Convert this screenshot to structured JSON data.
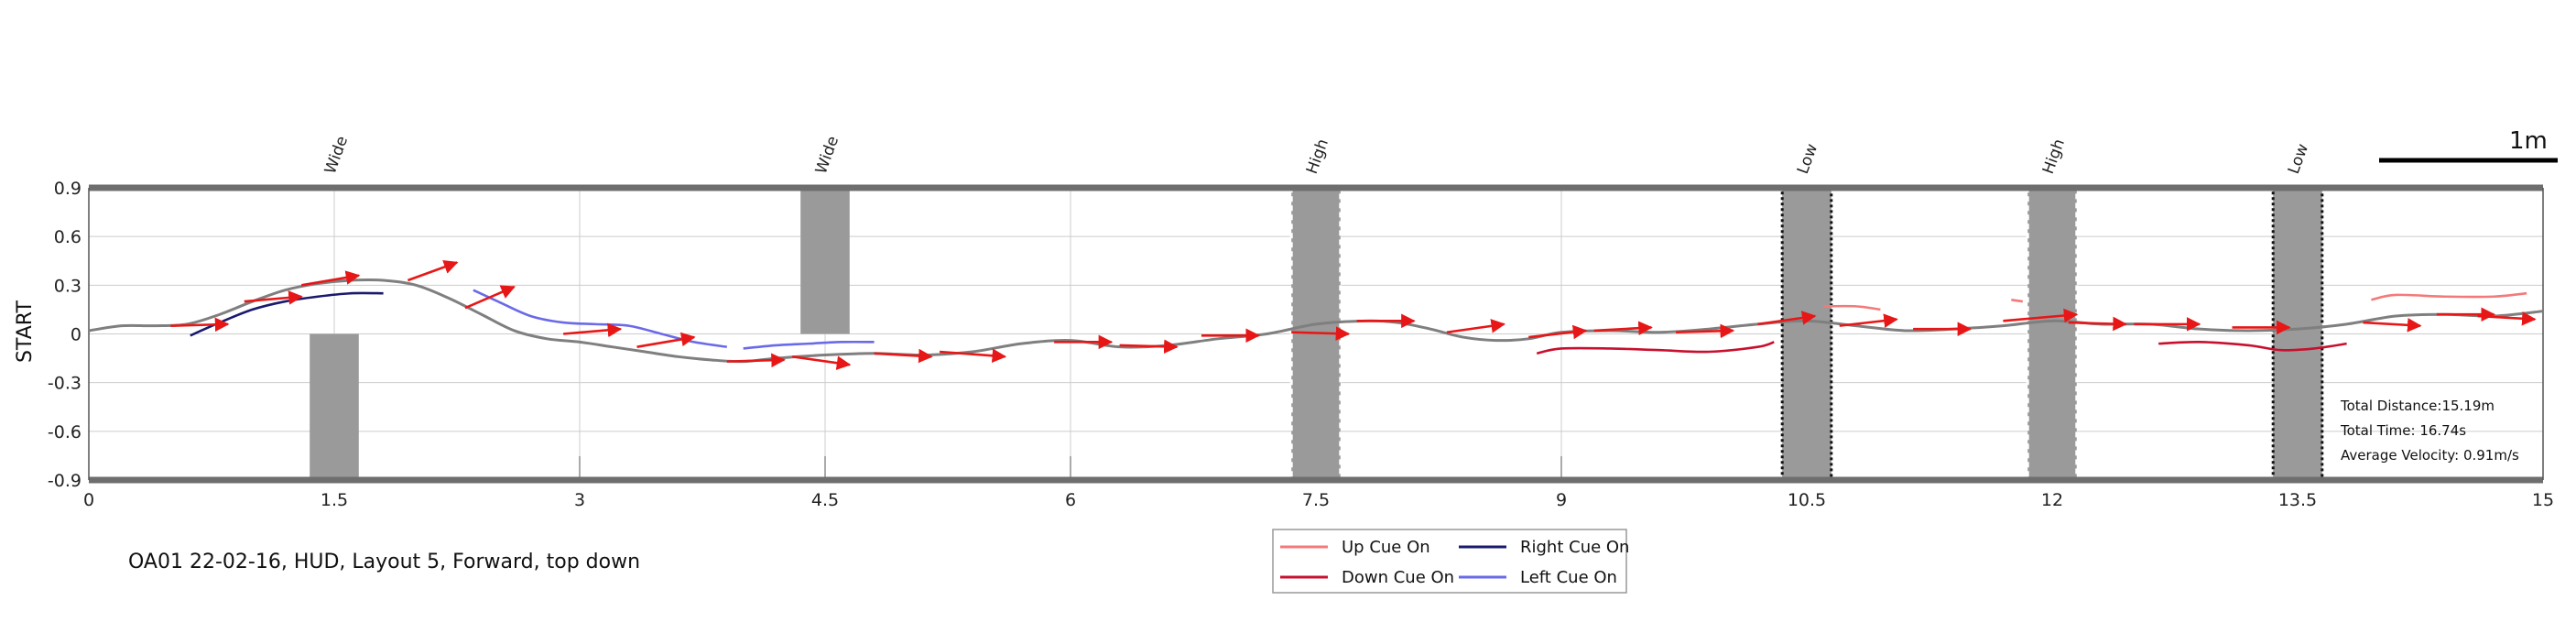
{
  "chart_data": {
    "type": "line",
    "title": "OA01 22-02-16, HUD, Layout 5, Forward, top down",
    "ylabel": "START",
    "xlim": [
      0,
      15
    ],
    "ylim": [
      -0.9,
      0.9
    ],
    "xticks": [
      "0",
      "1.5",
      "3",
      "4.5",
      "6",
      "7.5",
      "9",
      "10.5",
      "12",
      "13.5",
      "15"
    ],
    "yticks": [
      "0.9",
      "0.6",
      "0.3",
      "0",
      "-0.3",
      "-0.6",
      "-0.9"
    ],
    "grid": true,
    "scale_bar_label": "1m",
    "obstacles": [
      {
        "label": "Wide",
        "x": 1.5,
        "y_from": -0.9,
        "y_to": 0,
        "style": "solid"
      },
      {
        "label": "Wide",
        "x": 4.5,
        "y_from": 0,
        "y_to": 0.9,
        "style": "solid"
      },
      {
        "label": "High",
        "x": 7.5,
        "y_from": -0.9,
        "y_to": 0.9,
        "style": "light"
      },
      {
        "label": "Low",
        "x": 10.5,
        "y_from": -0.9,
        "y_to": 0.9,
        "style": "dark"
      },
      {
        "label": "High",
        "x": 12,
        "y_from": -0.9,
        "y_to": 0.9,
        "style": "light"
      },
      {
        "label": "Low",
        "x": 13.5,
        "y_from": -0.9,
        "y_to": 0.9,
        "style": "dark"
      }
    ],
    "path": {
      "x": [
        0,
        0.2,
        0.4,
        0.6,
        0.8,
        1.0,
        1.2,
        1.4,
        1.6,
        1.8,
        2.0,
        2.2,
        2.4,
        2.6,
        2.8,
        3.0,
        3.2,
        3.4,
        3.6,
        3.8,
        4.0,
        4.2,
        4.5,
        4.8,
        5.1,
        5.4,
        5.7,
        6.0,
        6.3,
        6.6,
        6.9,
        7.2,
        7.5,
        7.8,
        8.0,
        8.2,
        8.4,
        8.6,
        8.8,
        9.0,
        9.3,
        9.6,
        9.9,
        10.2,
        10.5,
        10.8,
        11.1,
        11.4,
        11.7,
        12.0,
        12.3,
        12.6,
        12.9,
        13.2,
        13.5,
        13.8,
        14.1,
        14.4,
        14.7,
        15.0
      ],
      "y": [
        0.02,
        0.05,
        0.05,
        0.06,
        0.12,
        0.2,
        0.27,
        0.31,
        0.33,
        0.33,
        0.3,
        0.22,
        0.12,
        0.02,
        -0.03,
        -0.05,
        -0.08,
        -0.11,
        -0.14,
        -0.16,
        -0.17,
        -0.15,
        -0.13,
        -0.12,
        -0.13,
        -0.11,
        -0.06,
        -0.04,
        -0.08,
        -0.07,
        -0.03,
        0.0,
        0.06,
        0.08,
        0.07,
        0.03,
        -0.02,
        -0.04,
        -0.03,
        0.01,
        0.02,
        0.01,
        0.03,
        0.06,
        0.08,
        0.05,
        0.02,
        0.03,
        0.05,
        0.08,
        0.06,
        0.06,
        0.03,
        0.02,
        0.03,
        0.06,
        0.11,
        0.12,
        0.11,
        0.14
      ]
    },
    "series": [
      {
        "name": "Up Cue On",
        "color": "#f47a7a",
        "segments": [
          [
            [
              10.6,
              0.17
            ],
            [
              10.8,
              0.17
            ],
            [
              10.95,
              0.15
            ]
          ],
          [
            [
              11.75,
              0.21
            ],
            [
              11.82,
              0.2
            ]
          ],
          [
            [
              13.95,
              0.21
            ],
            [
              14.1,
              0.24
            ],
            [
              14.4,
              0.23
            ],
            [
              14.7,
              0.23
            ],
            [
              14.9,
              0.25
            ]
          ]
        ]
      },
      {
        "name": "Right Cue On",
        "color": "#1a1a6e",
        "segments": [
          [
            [
              0.62,
              -0.01
            ],
            [
              0.8,
              0.07
            ],
            [
              1.0,
              0.15
            ],
            [
              1.2,
              0.2
            ],
            [
              1.4,
              0.23
            ],
            [
              1.6,
              0.25
            ],
            [
              1.8,
              0.25
            ]
          ]
        ]
      },
      {
        "name": "Down Cue On",
        "color": "#c8102e",
        "segments": [
          [
            [
              8.85,
              -0.12
            ],
            [
              9.0,
              -0.09
            ],
            [
              9.3,
              -0.09
            ],
            [
              9.6,
              -0.1
            ],
            [
              9.9,
              -0.11
            ],
            [
              10.2,
              -0.08
            ],
            [
              10.3,
              -0.05
            ]
          ],
          [
            [
              12.65,
              -0.06
            ],
            [
              12.9,
              -0.05
            ],
            [
              13.2,
              -0.07
            ],
            [
              13.4,
              -0.1
            ],
            [
              13.6,
              -0.09
            ],
            [
              13.8,
              -0.06
            ]
          ]
        ]
      },
      {
        "name": "Left Cue On",
        "color": "#6a6ae8",
        "segments": [
          [
            [
              2.35,
              0.27
            ],
            [
              2.5,
              0.2
            ],
            [
              2.7,
              0.11
            ],
            [
              2.9,
              0.07
            ],
            [
              3.1,
              0.06
            ],
            [
              3.3,
              0.05
            ],
            [
              3.5,
              0.0
            ],
            [
              3.7,
              -0.05
            ],
            [
              3.9,
              -0.08
            ]
          ],
          [
            [
              4.0,
              -0.09
            ],
            [
              4.2,
              -0.07
            ],
            [
              4.4,
              -0.06
            ],
            [
              4.6,
              -0.05
            ],
            [
              4.8,
              -0.05
            ]
          ]
        ]
      }
    ],
    "arrows": [
      {
        "x": 0.5,
        "y": 0.05,
        "dx": 0.35,
        "dy": 0.01
      },
      {
        "x": 0.95,
        "y": 0.2,
        "dx": 0.35,
        "dy": 0.03
      },
      {
        "x": 1.3,
        "y": 0.3,
        "dx": 0.35,
        "dy": 0.06
      },
      {
        "x": 1.95,
        "y": 0.33,
        "dx": 0.3,
        "dy": 0.11
      },
      {
        "x": 2.3,
        "y": 0.16,
        "dx": 0.3,
        "dy": 0.13
      },
      {
        "x": 2.9,
        "y": 0.0,
        "dx": 0.35,
        "dy": 0.03
      },
      {
        "x": 3.35,
        "y": -0.08,
        "dx": 0.35,
        "dy": 0.06
      },
      {
        "x": 3.9,
        "y": -0.17,
        "dx": 0.35,
        "dy": 0.01
      },
      {
        "x": 4.3,
        "y": -0.14,
        "dx": 0.35,
        "dy": -0.05
      },
      {
        "x": 4.8,
        "y": -0.12,
        "dx": 0.35,
        "dy": -0.02
      },
      {
        "x": 5.2,
        "y": -0.11,
        "dx": 0.4,
        "dy": -0.03
      },
      {
        "x": 5.9,
        "y": -0.05,
        "dx": 0.35,
        "dy": 0.0
      },
      {
        "x": 6.3,
        "y": -0.07,
        "dx": 0.35,
        "dy": -0.01
      },
      {
        "x": 6.8,
        "y": -0.01,
        "dx": 0.35,
        "dy": 0.0
      },
      {
        "x": 7.35,
        "y": 0.01,
        "dx": 0.35,
        "dy": -0.01
      },
      {
        "x": 7.75,
        "y": 0.08,
        "dx": 0.35,
        "dy": 0.0
      },
      {
        "x": 8.3,
        "y": 0.01,
        "dx": 0.35,
        "dy": 0.05
      },
      {
        "x": 8.8,
        "y": -0.02,
        "dx": 0.35,
        "dy": 0.04
      },
      {
        "x": 9.2,
        "y": 0.02,
        "dx": 0.35,
        "dy": 0.02
      },
      {
        "x": 9.7,
        "y": 0.01,
        "dx": 0.35,
        "dy": 0.01
      },
      {
        "x": 10.2,
        "y": 0.06,
        "dx": 0.35,
        "dy": 0.05
      },
      {
        "x": 10.7,
        "y": 0.05,
        "dx": 0.35,
        "dy": 0.04
      },
      {
        "x": 11.15,
        "y": 0.03,
        "dx": 0.35,
        "dy": 0.0
      },
      {
        "x": 11.7,
        "y": 0.08,
        "dx": 0.45,
        "dy": 0.04
      },
      {
        "x": 12.1,
        "y": 0.07,
        "dx": 0.35,
        "dy": -0.01
      },
      {
        "x": 12.5,
        "y": 0.06,
        "dx": 0.4,
        "dy": 0.0
      },
      {
        "x": 13.1,
        "y": 0.04,
        "dx": 0.35,
        "dy": 0.0
      },
      {
        "x": 13.9,
        "y": 0.07,
        "dx": 0.35,
        "dy": -0.02
      },
      {
        "x": 14.35,
        "y": 0.12,
        "dx": 0.35,
        "dy": 0.0
      },
      {
        "x": 14.6,
        "y": 0.11,
        "dx": 0.35,
        "dy": -0.02
      }
    ],
    "legend": {
      "placement": "bottom-center",
      "entries": [
        {
          "label": "Up Cue On",
          "color": "#f47a7a"
        },
        {
          "label": "Right Cue On",
          "color": "#1a1a6e"
        },
        {
          "label": "Down Cue On",
          "color": "#c8102e"
        },
        {
          "label": "Left Cue On",
          "color": "#6a6ae8"
        }
      ]
    },
    "stats": [
      "Total Distance:15.19m",
      "Total Time: 16.74s",
      "Average Velocity: 0.91m/s"
    ],
    "colors": {
      "path": "#7f7f7f",
      "arrow": "#e81717",
      "obstacle": "#9a9a9a",
      "border": "#6e6e6e",
      "grid": "#cccccc"
    }
  }
}
